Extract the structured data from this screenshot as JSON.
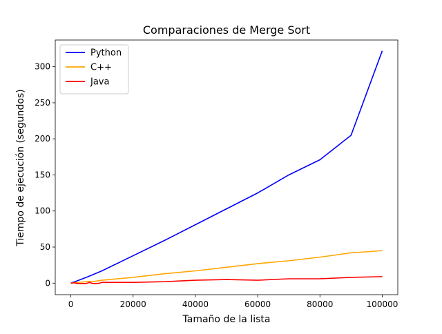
{
  "chart_data": {
    "type": "line",
    "title": "Comparaciones de Merge Sort",
    "xlabel": "Tamaño de la lista",
    "ylabel": "Tiempo de ejecución (segundos)",
    "xlim": [
      -5000,
      105000
    ],
    "ylim": [
      -16,
      337
    ],
    "xticks": [
      0,
      20000,
      40000,
      60000,
      80000,
      100000
    ],
    "yticks": [
      0,
      50,
      100,
      150,
      200,
      250,
      300
    ],
    "grid": false,
    "legend_position": "top-left",
    "series": [
      {
        "name": "Python",
        "color": "#0000ff",
        "points": [
          [
            0,
            0
          ],
          [
            1000,
            1.5
          ],
          [
            5000,
            8
          ],
          [
            10000,
            17
          ],
          [
            20000,
            38
          ],
          [
            30000,
            59
          ],
          [
            40000,
            81
          ],
          [
            50000,
            103
          ],
          [
            60000,
            125
          ],
          [
            70000,
            150
          ],
          [
            80000,
            171
          ],
          [
            90000,
            205
          ],
          [
            100000,
            322
          ]
        ]
      },
      {
        "name": "C++",
        "color": "#ffa500",
        "points": [
          [
            0,
            0
          ],
          [
            1000,
            0.5
          ],
          [
            5000,
            2
          ],
          [
            6000,
            2.5
          ],
          [
            7000,
            2
          ],
          [
            10000,
            4
          ],
          [
            20000,
            8
          ],
          [
            30000,
            13
          ],
          [
            40000,
            17
          ],
          [
            50000,
            22
          ],
          [
            60000,
            27
          ],
          [
            70000,
            31
          ],
          [
            80000,
            36
          ],
          [
            90000,
            42
          ],
          [
            100000,
            45
          ]
        ]
      },
      {
        "name": "Java",
        "color": "#ff0000",
        "points": [
          [
            0,
            0
          ],
          [
            1000,
            0.5
          ],
          [
            2000,
            -0.5
          ],
          [
            3000,
            -0.5
          ],
          [
            5000,
            -0.5
          ],
          [
            6000,
            1
          ],
          [
            7000,
            -0.5
          ],
          [
            8000,
            -0.5
          ],
          [
            9000,
            -0.3
          ],
          [
            10000,
            1
          ],
          [
            20000,
            1
          ],
          [
            30000,
            2
          ],
          [
            40000,
            4
          ],
          [
            50000,
            5
          ],
          [
            60000,
            4
          ],
          [
            70000,
            6
          ],
          [
            80000,
            6
          ],
          [
            90000,
            8
          ],
          [
            100000,
            9
          ]
        ]
      }
    ]
  }
}
